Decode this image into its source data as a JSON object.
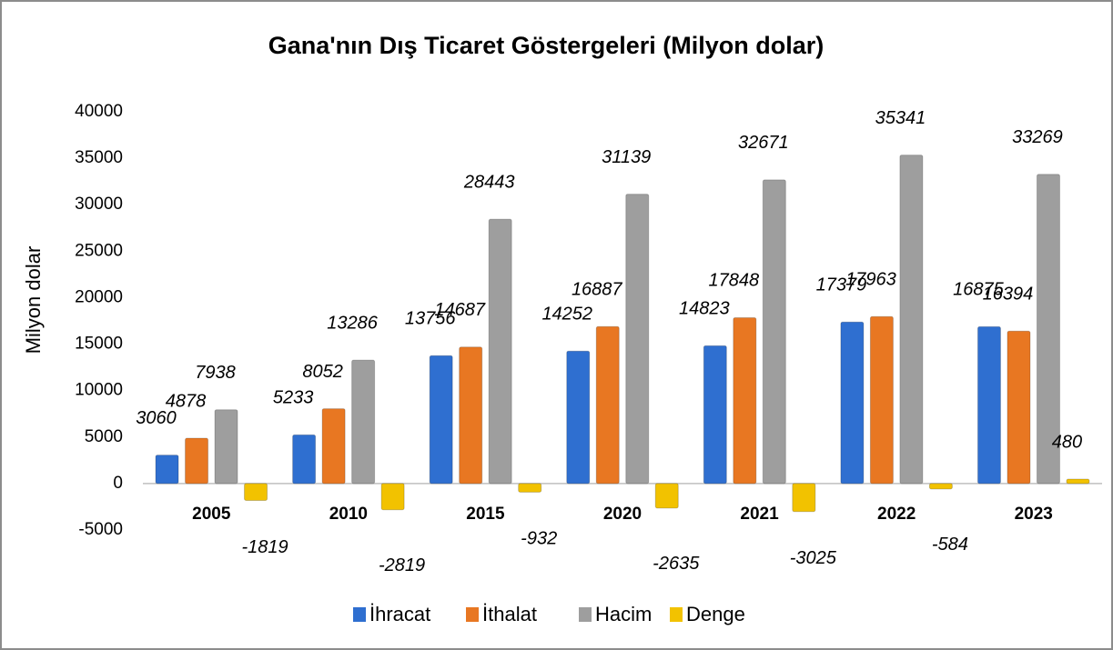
{
  "chart_data": {
    "type": "bar",
    "title": "Gana'nın Dış Ticaret Göstergeleri (Milyon dolar)",
    "y_label": "Milyon dolar",
    "categories": [
      "2005",
      "2010",
      "2015",
      "2020",
      "2021",
      "2022",
      "2023"
    ],
    "series": [
      {
        "name": "İhracat",
        "color": "#2f6fd0",
        "values": [
          3060,
          5233,
          13756,
          14252,
          14823,
          17379,
          16875
        ]
      },
      {
        "name": "İthalat",
        "color": "#e87722",
        "values": [
          4878,
          8052,
          14687,
          16887,
          17848,
          17963,
          16394
        ]
      },
      {
        "name": "Hacim",
        "color": "#9e9e9e",
        "values": [
          7938,
          13286,
          28443,
          31139,
          32671,
          35341,
          33269
        ]
      },
      {
        "name": "Denge",
        "color": "#f2c200",
        "values": [
          -1819,
          -2819,
          -932,
          -2635,
          -3025,
          -584,
          480
        ]
      }
    ],
    "ylim": [
      -5000,
      40000
    ],
    "yticks": [
      -5000,
      0,
      5000,
      10000,
      15000,
      20000,
      25000,
      30000,
      35000,
      40000
    ],
    "grid": false,
    "legend": "bottom"
  }
}
